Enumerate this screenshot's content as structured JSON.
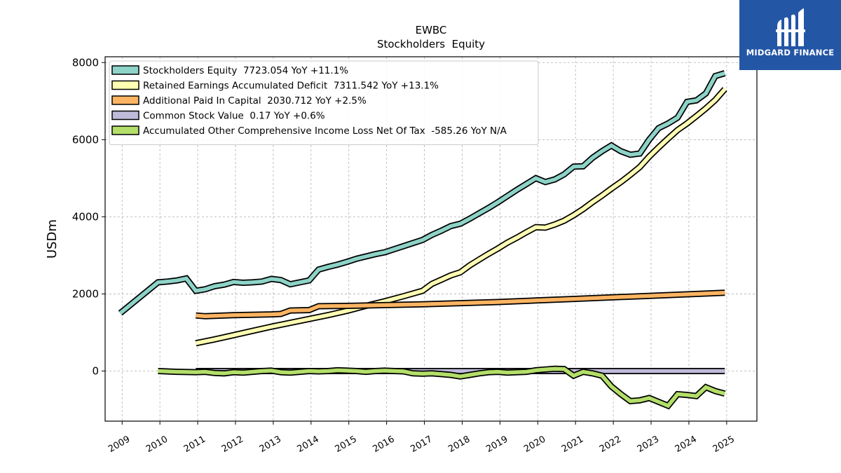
{
  "chart_data": {
    "type": "line",
    "title": "EWBC",
    "subtitle": "Stockholders  Equity",
    "ylabel": "USDm",
    "xlabel": "",
    "xlim": [
      2008.55,
      2025.8
    ],
    "ylim": [
      -1300,
      8150
    ],
    "yticks": [
      0,
      2000,
      4000,
      6000,
      8000
    ],
    "xticks": [
      2009,
      2010,
      2011,
      2012,
      2013,
      2014,
      2015,
      2016,
      2017,
      2018,
      2019,
      2020,
      2021,
      2022,
      2023,
      2024,
      2025
    ],
    "grid": true,
    "legend_position": "top-left",
    "series": [
      {
        "name": "Stockholders Equity  7723.054 YoY +11.1%",
        "color": "#8dd3c7",
        "points": [
          [
            2008.95,
            1500
          ],
          [
            2009.95,
            2300
          ],
          [
            2010.2,
            2320
          ],
          [
            2010.45,
            2350
          ],
          [
            2010.7,
            2400
          ],
          [
            2010.95,
            2080
          ],
          [
            2011.2,
            2120
          ],
          [
            2011.45,
            2200
          ],
          [
            2011.7,
            2240
          ],
          [
            2011.95,
            2310
          ],
          [
            2012.2,
            2290
          ],
          [
            2012.45,
            2300
          ],
          [
            2012.7,
            2320
          ],
          [
            2012.95,
            2390
          ],
          [
            2013.2,
            2360
          ],
          [
            2013.45,
            2250
          ],
          [
            2013.7,
            2300
          ],
          [
            2013.95,
            2350
          ],
          [
            2014.2,
            2630
          ],
          [
            2014.45,
            2700
          ],
          [
            2014.7,
            2760
          ],
          [
            2014.95,
            2830
          ],
          [
            2015.2,
            2910
          ],
          [
            2015.45,
            2970
          ],
          [
            2015.7,
            3030
          ],
          [
            2015.95,
            3080
          ],
          [
            2016.2,
            3160
          ],
          [
            2016.45,
            3240
          ],
          [
            2016.7,
            3320
          ],
          [
            2016.95,
            3400
          ],
          [
            2017.2,
            3530
          ],
          [
            2017.45,
            3640
          ],
          [
            2017.7,
            3760
          ],
          [
            2017.95,
            3820
          ],
          [
            2018.2,
            3950
          ],
          [
            2018.45,
            4090
          ],
          [
            2018.7,
            4230
          ],
          [
            2018.95,
            4380
          ],
          [
            2019.2,
            4540
          ],
          [
            2019.45,
            4700
          ],
          [
            2019.7,
            4850
          ],
          [
            2019.95,
            5000
          ],
          [
            2020.2,
            4900
          ],
          [
            2020.45,
            4970
          ],
          [
            2020.7,
            5100
          ],
          [
            2020.95,
            5300
          ],
          [
            2021.2,
            5310
          ],
          [
            2021.45,
            5530
          ],
          [
            2021.7,
            5700
          ],
          [
            2021.95,
            5850
          ],
          [
            2022.2,
            5700
          ],
          [
            2022.45,
            5610
          ],
          [
            2022.7,
            5640
          ],
          [
            2022.95,
            6000
          ],
          [
            2023.2,
            6300
          ],
          [
            2023.45,
            6420
          ],
          [
            2023.7,
            6570
          ],
          [
            2023.95,
            6980
          ],
          [
            2024.2,
            7020
          ],
          [
            2024.45,
            7200
          ],
          [
            2024.7,
            7650
          ],
          [
            2024.95,
            7723
          ]
        ]
      },
      {
        "name": "Retained Earnings Accumulated Deficit  7311.542 YoY +13.1%",
        "color": "#ffffb3",
        "points": [
          [
            2010.95,
            720
          ],
          [
            2011.45,
            820
          ],
          [
            2011.95,
            930
          ],
          [
            2012.45,
            1040
          ],
          [
            2012.95,
            1150
          ],
          [
            2013.45,
            1250
          ],
          [
            2013.95,
            1350
          ],
          [
            2014.45,
            1450
          ],
          [
            2014.95,
            1560
          ],
          [
            2015.45,
            1690
          ],
          [
            2015.95,
            1810
          ],
          [
            2016.45,
            1940
          ],
          [
            2016.95,
            2080
          ],
          [
            2017.2,
            2260
          ],
          [
            2017.45,
            2370
          ],
          [
            2017.7,
            2480
          ],
          [
            2017.95,
            2560
          ],
          [
            2018.2,
            2740
          ],
          [
            2018.45,
            2890
          ],
          [
            2018.7,
            3040
          ],
          [
            2018.95,
            3180
          ],
          [
            2019.2,
            3330
          ],
          [
            2019.45,
            3460
          ],
          [
            2019.7,
            3600
          ],
          [
            2019.95,
            3730
          ],
          [
            2020.2,
            3720
          ],
          [
            2020.45,
            3800
          ],
          [
            2020.7,
            3900
          ],
          [
            2020.95,
            4040
          ],
          [
            2021.2,
            4200
          ],
          [
            2021.45,
            4380
          ],
          [
            2021.7,
            4550
          ],
          [
            2021.95,
            4730
          ],
          [
            2022.2,
            4900
          ],
          [
            2022.45,
            5090
          ],
          [
            2022.7,
            5290
          ],
          [
            2022.95,
            5560
          ],
          [
            2023.2,
            5800
          ],
          [
            2023.45,
            6030
          ],
          [
            2023.7,
            6250
          ],
          [
            2023.95,
            6420
          ],
          [
            2024.2,
            6610
          ],
          [
            2024.45,
            6810
          ],
          [
            2024.7,
            7030
          ],
          [
            2024.95,
            7311
          ]
        ]
      },
      {
        "name": "Additional Paid In Capital  2030.712 YoY +2.5%",
        "color": "#fdb462",
        "points": [
          [
            2010.95,
            1440
          ],
          [
            2011.2,
            1420
          ],
          [
            2011.95,
            1450
          ],
          [
            2012.95,
            1470
          ],
          [
            2013.2,
            1480
          ],
          [
            2013.45,
            1570
          ],
          [
            2013.95,
            1580
          ],
          [
            2014.2,
            1680
          ],
          [
            2014.95,
            1690
          ],
          [
            2015.95,
            1710
          ],
          [
            2016.95,
            1730
          ],
          [
            2017.95,
            1760
          ],
          [
            2018.95,
            1790
          ],
          [
            2019.95,
            1830
          ],
          [
            2020.95,
            1870
          ],
          [
            2021.95,
            1910
          ],
          [
            2022.95,
            1950
          ],
          [
            2023.95,
            1990
          ],
          [
            2024.95,
            2030
          ]
        ]
      },
      {
        "name": "Common Stock Value  0.17 YoY +0.6%",
        "color": "#bebada",
        "points": [
          [
            2010.95,
            0
          ],
          [
            2024.95,
            0
          ]
        ]
      },
      {
        "name": "Accumulated Other Comprehensive Income Loss Net Of Tax  -585.26 YoY N/A",
        "color": "#b3de69",
        "points": [
          [
            2009.95,
            0
          ],
          [
            2010.45,
            -20
          ],
          [
            2010.95,
            -30
          ],
          [
            2011.2,
            -20
          ],
          [
            2011.45,
            -50
          ],
          [
            2011.7,
            -60
          ],
          [
            2011.95,
            -30
          ],
          [
            2012.2,
            -40
          ],
          [
            2012.45,
            -20
          ],
          [
            2012.7,
            0
          ],
          [
            2012.95,
            10
          ],
          [
            2013.2,
            -30
          ],
          [
            2013.45,
            -40
          ],
          [
            2013.7,
            -20
          ],
          [
            2013.95,
            0
          ],
          [
            2014.2,
            -10
          ],
          [
            2014.45,
            0
          ],
          [
            2014.7,
            20
          ],
          [
            2014.95,
            10
          ],
          [
            2015.2,
            0
          ],
          [
            2015.45,
            -20
          ],
          [
            2015.7,
            0
          ],
          [
            2015.95,
            10
          ],
          [
            2016.2,
            0
          ],
          [
            2016.45,
            -10
          ],
          [
            2016.7,
            -60
          ],
          [
            2016.95,
            -70
          ],
          [
            2017.2,
            -60
          ],
          [
            2017.45,
            -80
          ],
          [
            2017.7,
            -100
          ],
          [
            2017.95,
            -140
          ],
          [
            2018.2,
            -100
          ],
          [
            2018.45,
            -60
          ],
          [
            2018.7,
            -30
          ],
          [
            2018.95,
            -20
          ],
          [
            2019.2,
            -40
          ],
          [
            2019.45,
            -30
          ],
          [
            2019.7,
            -20
          ],
          [
            2019.95,
            20
          ],
          [
            2020.2,
            40
          ],
          [
            2020.45,
            60
          ],
          [
            2020.7,
            50
          ],
          [
            2020.95,
            -120
          ],
          [
            2021.2,
            -20
          ],
          [
            2021.45,
            -60
          ],
          [
            2021.7,
            -120
          ],
          [
            2021.95,
            -400
          ],
          [
            2022.2,
            -600
          ],
          [
            2022.45,
            -780
          ],
          [
            2022.7,
            -760
          ],
          [
            2022.95,
            -700
          ],
          [
            2023.2,
            -800
          ],
          [
            2023.45,
            -900
          ],
          [
            2023.7,
            -600
          ],
          [
            2023.95,
            -620
          ],
          [
            2024.2,
            -650
          ],
          [
            2024.45,
            -420
          ],
          [
            2024.7,
            -520
          ],
          [
            2024.95,
            -585
          ]
        ]
      }
    ]
  },
  "logo": {
    "text": "MIDGARD FINANCE",
    "background": "#2456a6",
    "icon": "midgard-logo-icon"
  }
}
